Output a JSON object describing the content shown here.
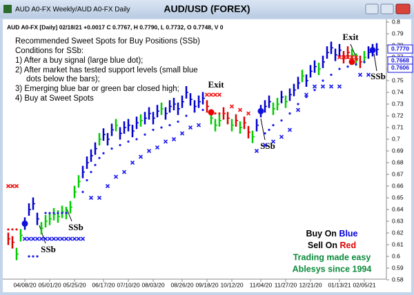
{
  "window": {
    "title": "AUD A0-FX Weekly/AUD A0-FX Daily"
  },
  "chart_data": {
    "type": "price",
    "title": "AUD/USD (FOREX)",
    "info": "AUD A0-FX [Daily] 02/18/21 +0.0017 C 0.7767, H 0.7790, L 0.7732, O 0.7748, V 0",
    "notes": [
      "Recommended Sweet Spots for Buy Positions (SSb)",
      "Conditions for SSb:",
      "1) After a buy signal (large blue dot);",
      "2) After market has tested support levels (small blue",
      "dots below the bars);",
      "3) Emerging blue bar or green bar closed high;",
      "4) Buy at Sweet Spots"
    ],
    "exit_labels": [
      "Exit",
      "Exit"
    ],
    "ssb_labels": [
      "SSb",
      "SSb",
      "SSb",
      "SSb"
    ],
    "xlim": [
      -2,
      91
    ],
    "xticks": [
      {
        "value": 4,
        "label": "04/08/20"
      },
      {
        "value": 10,
        "label": "05/01/20"
      },
      {
        "value": 16,
        "label": "05/25/20"
      },
      {
        "value": 23,
        "label": "06/17/20"
      },
      {
        "value": 29,
        "label": "07/10/20"
      },
      {
        "value": 35,
        "label": "08/03/20"
      },
      {
        "value": 42,
        "label": "08/26/20"
      },
      {
        "value": 48,
        "label": "09/18/20"
      },
      {
        "value": 54,
        "label": "10/12/20"
      },
      {
        "value": 61,
        "label": "11/04/20"
      },
      {
        "value": 67,
        "label": "11/27/20"
      },
      {
        "value": 73,
        "label": "12/21/20"
      },
      {
        "value": 80,
        "label": "01/13/21"
      },
      {
        "value": 86,
        "label": "02/05/21"
      }
    ],
    "ylim": [
      0.58,
      0.8
    ],
    "yticks": [
      0.58,
      0.59,
      0.6,
      0.61,
      0.62,
      0.63,
      0.64,
      0.65,
      0.66,
      0.67,
      0.68,
      0.69,
      0.7,
      0.71,
      0.72,
      0.73,
      0.74,
      0.75,
      0.76,
      0.77,
      0.78,
      0.79,
      0.8
    ],
    "palette": {
      "b": "#0000cc",
      "g": "#00cc00",
      "r": "#dd0000"
    },
    "bar_colors": "rrggbbbbggggggggggbbbbgbbbgbbbbbgbbbbgbbbbbbbbbbrgggrrgrgrrgbbbbggbgbbbgbbbgbbbbbrrggrgbbb",
    "close": [
      0.615,
      0.612,
      0.602,
      0.618,
      0.628,
      0.64,
      0.645,
      0.632,
      0.624,
      0.63,
      0.632,
      0.636,
      0.634,
      0.638,
      0.637,
      0.642,
      0.655,
      0.664,
      0.672,
      0.68,
      0.686,
      0.692,
      0.7,
      0.704,
      0.7,
      0.708,
      0.712,
      0.705,
      0.71,
      0.712,
      0.707,
      0.714,
      0.716,
      0.718,
      0.722,
      0.718,
      0.724,
      0.726,
      0.722,
      0.728,
      0.73,
      0.726,
      0.732,
      0.74,
      0.734,
      0.728,
      0.732,
      0.735,
      0.728,
      0.718,
      0.712,
      0.716,
      0.722,
      0.718,
      0.712,
      0.716,
      0.71,
      0.714,
      0.706,
      0.702,
      0.712,
      0.724,
      0.728,
      0.732,
      0.726,
      0.73,
      0.736,
      0.732,
      0.738,
      0.742,
      0.748,
      0.754,
      0.75,
      0.758,
      0.762,
      0.76,
      0.766,
      0.774,
      0.778,
      0.772,
      0.776,
      0.77,
      0.774,
      0.772,
      0.768,
      0.766,
      0.77,
      0.774,
      0.776,
      0.7767
    ],
    "support_dots": {
      "color": "#1a1aee",
      "x": [
        5,
        6,
        7,
        9,
        10,
        11,
        12,
        13,
        14,
        18,
        19,
        20,
        21,
        22,
        23,
        25,
        27,
        29,
        31,
        33,
        35,
        37,
        39,
        41,
        43,
        45,
        47,
        62,
        63,
        64,
        66,
        68,
        70,
        72,
        74,
        76,
        78,
        80,
        82,
        84,
        86
      ],
      "values": [
        0.6,
        0.6,
        0.6,
        0.637,
        0.637,
        0.637,
        0.637,
        0.637,
        0.637,
        0.655,
        0.665,
        0.672,
        0.678,
        0.684,
        0.688,
        0.692,
        0.695,
        0.698,
        0.7,
        0.704,
        0.708,
        0.71,
        0.712,
        0.715,
        0.72,
        0.724,
        0.725,
        0.705,
        0.708,
        0.712,
        0.716,
        0.722,
        0.73,
        0.736,
        0.742,
        0.75,
        0.755,
        0.76,
        0.762,
        0.764,
        0.766
      ]
    },
    "red_dots": {
      "color": "#ee1111",
      "x": [
        0,
        1,
        2,
        49,
        50,
        51,
        52,
        84
      ],
      "values": [
        0.623,
        0.623,
        0.623,
        0.722,
        0.722,
        0.722,
        0.722,
        0.768
      ]
    },
    "blue_crosses": {
      "color": "#1a1aee",
      "x": [
        4,
        5,
        6,
        7,
        8,
        9,
        10,
        11,
        12,
        13,
        14,
        15,
        16,
        17,
        18,
        20,
        22,
        24,
        26,
        28,
        30,
        32,
        34,
        36,
        38,
        40,
        42,
        44,
        46,
        60,
        62,
        64,
        66,
        68,
        70,
        72,
        74,
        76,
        78,
        80,
        85,
        87
      ],
      "values": [
        0.615,
        0.615,
        0.615,
        0.615,
        0.615,
        0.615,
        0.615,
        0.615,
        0.615,
        0.615,
        0.615,
        0.615,
        0.615,
        0.615,
        0.615,
        0.65,
        0.65,
        0.66,
        0.668,
        0.672,
        0.68,
        0.685,
        0.69,
        0.693,
        0.698,
        0.7,
        0.705,
        0.71,
        0.712,
        0.69,
        0.695,
        0.698,
        0.702,
        0.708,
        0.725,
        0.738,
        0.745,
        0.745,
        0.745,
        0.745,
        0.755,
        0.755
      ]
    },
    "red_crosses": {
      "color": "#ee1111",
      "x": [
        0,
        1,
        2,
        48,
        49,
        50,
        51,
        54,
        56,
        58,
        80,
        81,
        82,
        83,
        84
      ],
      "values": [
        0.66,
        0.66,
        0.66,
        0.738,
        0.738,
        0.738,
        0.738,
        0.728,
        0.725,
        0.722,
        0.77,
        0.77,
        0.77,
        0.77,
        0.77
      ]
    },
    "buy_signals": {
      "color": "#1010dd",
      "x": [
        4,
        61,
        88
      ],
      "values": [
        0.628,
        0.724,
        0.776
      ]
    },
    "sell_signals": {
      "color": "#ee0000",
      "x": [
        49,
        83
      ],
      "values": [
        0.723,
        0.766
      ]
    },
    "price_tags": [
      {
        "value": 0.777,
        "label": "0.7770"
      },
      {
        "value": 0.7668,
        "label": "0.7668"
      },
      {
        "value": 0.7606,
        "label": "0.7606"
      }
    ],
    "legend": {
      "buy_prefix": "Buy On",
      "buy_word": "Blue",
      "sell_prefix": "Sell On",
      "sell_word": "Red",
      "line3": "Trading made easy",
      "line4": "Ablesys since 1994"
    }
  }
}
